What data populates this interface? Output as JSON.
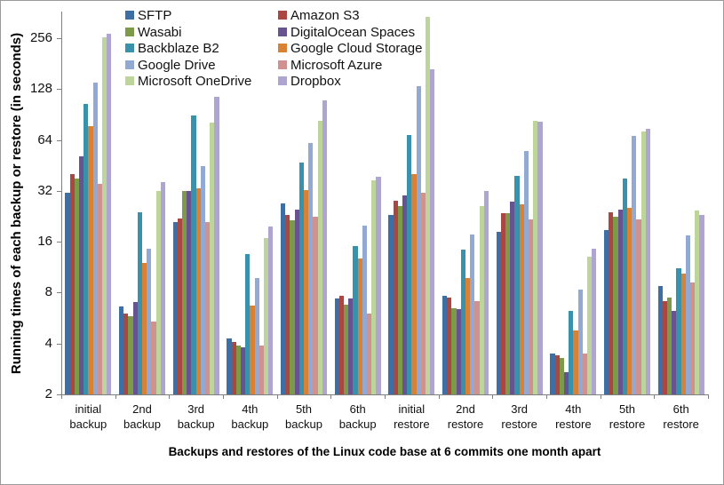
{
  "frame": {
    "background": "#ffffff",
    "border_color": "#9b9b9b"
  },
  "chart_data": {
    "type": "bar",
    "title": "",
    "ylabel": "Running times of each backup or restore (in seconds)",
    "xlabel": "Backups and restores of the Linux code base at 6 commits one month apart",
    "y_scale": "log2",
    "ylim": [
      2,
      362
    ],
    "y_ticks": [
      2,
      4,
      8,
      16,
      32,
      64,
      128,
      256
    ],
    "grid": false,
    "legend_position": "top-inside-two-columns",
    "categories": [
      {
        "line1": "initial",
        "line2": "backup"
      },
      {
        "line1": "2nd",
        "line2": "backup"
      },
      {
        "line1": "3rd",
        "line2": "backup"
      },
      {
        "line1": "4th",
        "line2": "backup"
      },
      {
        "line1": "5th",
        "line2": "backup"
      },
      {
        "line1": "6th",
        "line2": "backup"
      },
      {
        "line1": "initial",
        "line2": "restore"
      },
      {
        "line1": "2nd",
        "line2": "restore"
      },
      {
        "line1": "3rd",
        "line2": "restore"
      },
      {
        "line1": "4th",
        "line2": "restore"
      },
      {
        "line1": "5th",
        "line2": "restore"
      },
      {
        "line1": "6th",
        "line2": "restore"
      }
    ],
    "series": [
      {
        "name": "SFTP",
        "color": "#3E6FA4",
        "values": [
          31,
          6.6,
          21,
          4.3,
          27,
          7.4,
          23,
          7.7,
          18.4,
          3.5,
          18.7,
          8.7
        ]
      },
      {
        "name": "Amazon S3",
        "color": "#AA4743",
        "values": [
          40,
          6.0,
          22,
          4.1,
          23,
          7.7,
          28,
          7.5,
          23.5,
          3.4,
          23.8,
          7.1
        ]
      },
      {
        "name": "Wasabi",
        "color": "#7C9A48",
        "values": [
          38,
          5.8,
          32,
          3.9,
          21.4,
          6.8,
          26,
          6.5,
          23.5,
          3.3,
          22.4,
          7.5
        ]
      },
      {
        "name": "DigitalOcean Spaces",
        "color": "#66538F",
        "values": [
          51,
          7.0,
          32,
          3.8,
          24.8,
          7.4,
          30,
          6.4,
          27.6,
          2.7,
          24.8,
          6.2
        ]
      },
      {
        "name": "Backblaze B2",
        "color": "#3892AB",
        "values": [
          105,
          24,
          89,
          13.5,
          47,
          15,
          68,
          14.4,
          39.4,
          6.2,
          38,
          11.2
        ]
      },
      {
        "name": "Google Cloud Storage",
        "color": "#D98236",
        "values": [
          77,
          12,
          33,
          6.7,
          32.4,
          12.7,
          40,
          9.8,
          26.6,
          4.8,
          25.4,
          10.4
        ]
      },
      {
        "name": "Google Drive",
        "color": "#92A9D4",
        "values": [
          140,
          14.6,
          45,
          9.8,
          61,
          20,
          133,
          17.7,
          55,
          8.3,
          67.6,
          17.4
        ]
      },
      {
        "name": "Microsoft Azure",
        "color": "#D09291",
        "values": [
          35,
          5.4,
          21,
          3.9,
          22.4,
          6.0,
          31,
          7.1,
          21.6,
          3.5,
          21.6,
          9.2
        ]
      },
      {
        "name": "Microsoft OneDrive",
        "color": "#BDD49A",
        "values": [
          258,
          32,
          81,
          16.8,
          83,
          36.7,
          340,
          26,
          83,
          13,
          72,
          24.6
        ]
      },
      {
        "name": "Dropbox",
        "color": "#AFA5D1",
        "values": [
          272,
          36,
          115,
          19.7,
          110,
          38.6,
          168,
          32,
          82,
          14.5,
          74.6,
          23
        ]
      }
    ],
    "legend_columns": [
      [
        0,
        2,
        4,
        6,
        8
      ],
      [
        1,
        3,
        5,
        7,
        9
      ]
    ]
  }
}
